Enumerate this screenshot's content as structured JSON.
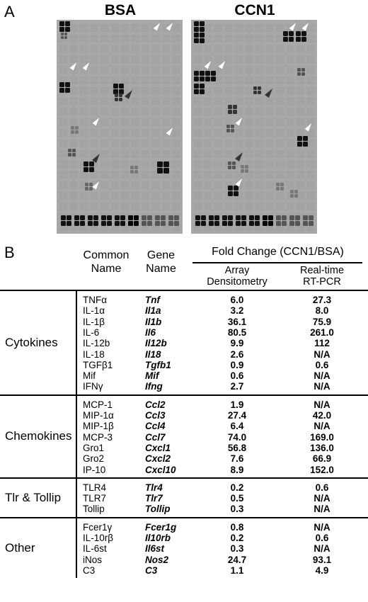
{
  "panels": {
    "a_letter": "A",
    "b_letter": "B"
  },
  "blots": {
    "left_title": "BSA",
    "right_title": "CCN1"
  },
  "table": {
    "header": {
      "common": [
        "Common",
        "Name"
      ],
      "gene": [
        "Gene",
        "Name"
      ],
      "fold": "Fold Change (CCN1/BSA)",
      "array": [
        "Array",
        "Densitometry"
      ],
      "rt": [
        "Real-time",
        "RT-PCR"
      ]
    },
    "groups": [
      {
        "label": "Cytokines",
        "rows": [
          {
            "common": "TNFα",
            "gene": "Tnf",
            "array": "6.0",
            "rt": "27.3"
          },
          {
            "common": "IL-1α",
            "gene": "Il1a",
            "array": "3.2",
            "rt": "8.0"
          },
          {
            "common": "IL-1β",
            "gene": "Il1b",
            "array": "36.1",
            "rt": "75.9"
          },
          {
            "common": "IL-6",
            "gene": "Il6",
            "array": "80.5",
            "rt": "261.0"
          },
          {
            "common": "IL-12b",
            "gene": "Il12b",
            "array": "9.9",
            "rt": "112"
          },
          {
            "common": "IL-18",
            "gene": "Il18",
            "array": "2.6",
            "rt": "N/A"
          },
          {
            "common": "TGFβ1",
            "gene": "Tgfb1",
            "array": "0.9",
            "rt": "0.6"
          },
          {
            "common": "Mif",
            "gene": "Mif",
            "array": "0.6",
            "rt": "N/A"
          },
          {
            "common": "IFNγ",
            "gene": "Ifng",
            "array": "2.7",
            "rt": "N/A"
          }
        ]
      },
      {
        "label": "Chemokines",
        "rows": [
          {
            "common": "MCP-1",
            "gene": "Ccl2",
            "array": "1.9",
            "rt": "N/A"
          },
          {
            "common": "MIP-1α",
            "gene": "Ccl3",
            "array": "27.4",
            "rt": "42.0"
          },
          {
            "common": "MIP-1β",
            "gene": "Ccl4",
            "array": "6.4",
            "rt": "N/A"
          },
          {
            "common": "MCP-3",
            "gene": "Ccl7",
            "array": "74.0",
            "rt": "169.0"
          },
          {
            "common": "Gro1",
            "gene": "Cxcl1",
            "array": "56.8",
            "rt": "136.0"
          },
          {
            "common": "Gro2",
            "gene": "Cxcl2",
            "array": "7.6",
            "rt": "66.9"
          },
          {
            "common": "IP-10",
            "gene": "Cxcl10",
            "array": "8.9",
            "rt": "152.0"
          }
        ]
      },
      {
        "label": "Tlr & Tollip",
        "rows": [
          {
            "common": "TLR4",
            "gene": "Tlr4",
            "array": "0.2",
            "rt": "0.6"
          },
          {
            "common": "TLR7",
            "gene": "Tlr7",
            "array": "0.5",
            "rt": "N/A"
          },
          {
            "common": "Tollip",
            "gene": "Tollip",
            "array": "0.3",
            "rt": "N/A"
          }
        ]
      },
      {
        "label": "Other",
        "rows": [
          {
            "common": "Fcer1γ",
            "gene": "Fcer1g",
            "array": "0.8",
            "rt": "N/A"
          },
          {
            "common": "IL-10rβ",
            "gene": "Il10rb",
            "array": "0.2",
            "rt": "0.6"
          },
          {
            "common": "IL-6st",
            "gene": "Il6st",
            "array": "0.3",
            "rt": "N/A"
          },
          {
            "common": "iNos",
            "gene": "Nos2",
            "array": "24.7",
            "rt": "93.1"
          },
          {
            "common": "C3",
            "gene": "C3",
            "array": "1.1",
            "rt": "4.9"
          }
        ]
      }
    ]
  }
}
